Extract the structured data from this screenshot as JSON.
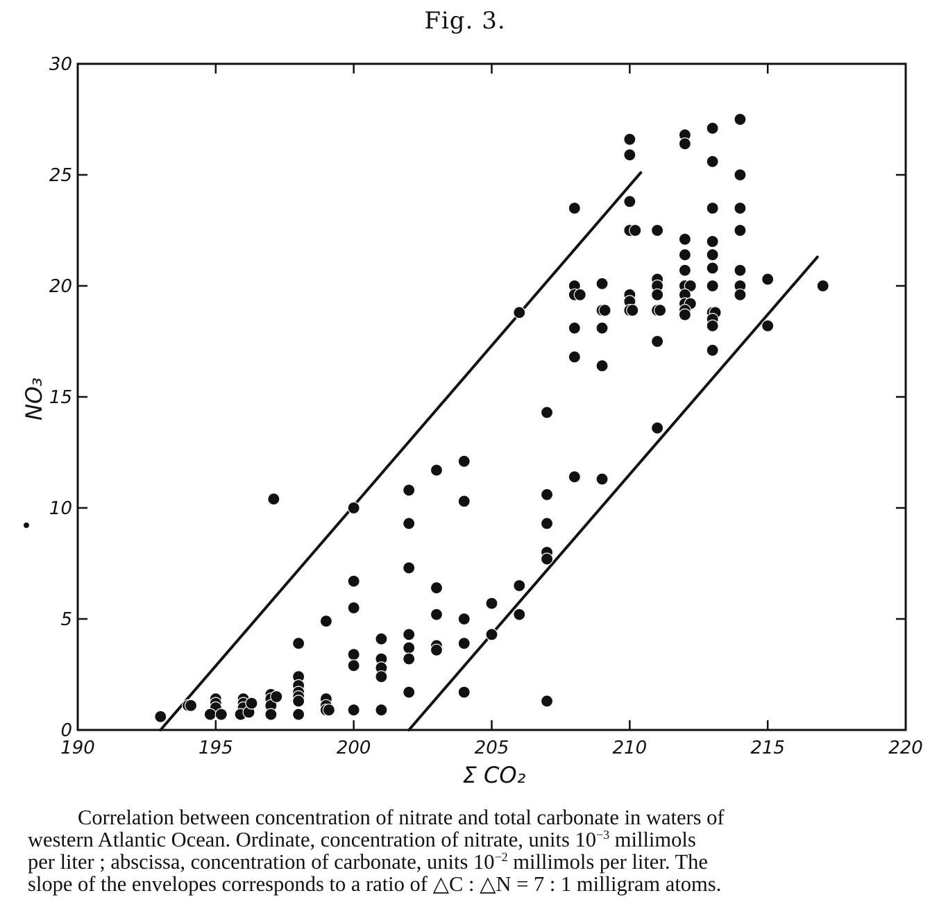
{
  "figure_title": "Fig. 3.",
  "caption": {
    "line1": "Correlation between concentration of nitrate and total carbonate in waters of",
    "line2_a": "western Atlantic Ocean.  Ordinate, concentration of nitrate, units 10",
    "line2_exp": "−3",
    "line2_b": " millimols",
    "line3_a": "per liter ;  abscissa, concentration of carbonate, units 10",
    "line3_exp": "−2",
    "line3_b": " millimols per liter.  The",
    "line4": "slope of the envelopes corresponds to a ratio of △C : △N = 7 : 1 milligram atoms."
  },
  "chart_data": {
    "type": "scatter",
    "title": "Fig. 3.",
    "xlabel": "Σ CO₂",
    "ylabel": "NO₃",
    "xlim": [
      190,
      220
    ],
    "ylim": [
      0,
      30
    ],
    "x_ticks": [
      190,
      195,
      200,
      205,
      210,
      215,
      220
    ],
    "y_ticks": [
      0,
      5,
      10,
      15,
      20,
      25,
      30
    ],
    "x_tick_labels": [
      "190",
      "195",
      "200",
      "205",
      "210",
      "215",
      "220"
    ],
    "y_tick_labels": [
      "0",
      "5",
      "10",
      "15",
      "20",
      "25",
      "30"
    ],
    "grid": false,
    "envelope_lines": [
      {
        "x": [
          193.0,
          210.4
        ],
        "y": [
          0.0,
          25.1
        ]
      },
      {
        "x": [
          202.0,
          216.8
        ],
        "y": [
          0.0,
          21.3
        ]
      }
    ],
    "points": [
      [
        193,
        0.6
      ],
      [
        194,
        1.1
      ],
      [
        194.1,
        1.1
      ],
      [
        195,
        1.4
      ],
      [
        195,
        1.2
      ],
      [
        195,
        1.0
      ],
      [
        194.8,
        0.7
      ],
      [
        195.2,
        0.7
      ],
      [
        196,
        1.4
      ],
      [
        196,
        1.2
      ],
      [
        196,
        1.0
      ],
      [
        195.9,
        0.7
      ],
      [
        196.2,
        0.8
      ],
      [
        196.3,
        1.2
      ],
      [
        197,
        1.6
      ],
      [
        197,
        1.4
      ],
      [
        197,
        1.1
      ],
      [
        197,
        0.7
      ],
      [
        197.2,
        1.5
      ],
      [
        197.1,
        10.4
      ],
      [
        198,
        3.9
      ],
      [
        198,
        2.4
      ],
      [
        198,
        2.0
      ],
      [
        198,
        1.7
      ],
      [
        198,
        1.5
      ],
      [
        198,
        1.3
      ],
      [
        198,
        0.7
      ],
      [
        199,
        4.9
      ],
      [
        199,
        1.4
      ],
      [
        199,
        1.1
      ],
      [
        199,
        0.9
      ],
      [
        199.1,
        0.9
      ],
      [
        200,
        10.0
      ],
      [
        200,
        6.7
      ],
      [
        200,
        5.5
      ],
      [
        200,
        3.4
      ],
      [
        200,
        2.9
      ],
      [
        200,
        0.9
      ],
      [
        201,
        4.1
      ],
      [
        201,
        3.2
      ],
      [
        201,
        2.8
      ],
      [
        201,
        2.4
      ],
      [
        201,
        0.9
      ],
      [
        202,
        10.8
      ],
      [
        202,
        9.3
      ],
      [
        202,
        7.3
      ],
      [
        202,
        4.3
      ],
      [
        202,
        3.7
      ],
      [
        202,
        3.2
      ],
      [
        202,
        1.7
      ],
      [
        203,
        11.7
      ],
      [
        203,
        6.4
      ],
      [
        203,
        5.2
      ],
      [
        203,
        3.8
      ],
      [
        203,
        3.6
      ],
      [
        204,
        12.1
      ],
      [
        204,
        10.3
      ],
      [
        204,
        5.0
      ],
      [
        204,
        3.9
      ],
      [
        204,
        1.7
      ],
      [
        205,
        5.7
      ],
      [
        205,
        4.3
      ],
      [
        206,
        18.8
      ],
      [
        206,
        6.5
      ],
      [
        206,
        5.2
      ],
      [
        207,
        14.3
      ],
      [
        207,
        10.6
      ],
      [
        207,
        9.3
      ],
      [
        207,
        8.0
      ],
      [
        207,
        7.7
      ],
      [
        207,
        1.3
      ],
      [
        208,
        23.5
      ],
      [
        208,
        20.0
      ],
      [
        208,
        19.6
      ],
      [
        208.2,
        19.6
      ],
      [
        208,
        18.1
      ],
      [
        208,
        16.8
      ],
      [
        208,
        11.4
      ],
      [
        209,
        20.1
      ],
      [
        209,
        18.9
      ],
      [
        209.1,
        18.9
      ],
      [
        209,
        18.1
      ],
      [
        209,
        16.4
      ],
      [
        209,
        11.3
      ],
      [
        210,
        26.6
      ],
      [
        210,
        25.9
      ],
      [
        210,
        23.8
      ],
      [
        210,
        22.5
      ],
      [
        210.2,
        22.5
      ],
      [
        210,
        19.6
      ],
      [
        210,
        19.3
      ],
      [
        210,
        18.9
      ],
      [
        210.1,
        18.9
      ],
      [
        211,
        22.5
      ],
      [
        211,
        20.3
      ],
      [
        211,
        20.0
      ],
      [
        211,
        19.6
      ],
      [
        211,
        18.9
      ],
      [
        211.1,
        18.9
      ],
      [
        211,
        17.5
      ],
      [
        211,
        13.6
      ],
      [
        212,
        26.8
      ],
      [
        212,
        26.4
      ],
      [
        212,
        22.1
      ],
      [
        212,
        21.4
      ],
      [
        212,
        20.7
      ],
      [
        212,
        20.0
      ],
      [
        212.2,
        20.0
      ],
      [
        212,
        19.6
      ],
      [
        212,
        19.2
      ],
      [
        212.2,
        19.2
      ],
      [
        212,
        18.9
      ],
      [
        212,
        18.7
      ],
      [
        213,
        27.1
      ],
      [
        213,
        25.6
      ],
      [
        213,
        23.5
      ],
      [
        213,
        22.0
      ],
      [
        213,
        21.4
      ],
      [
        213,
        20.8
      ],
      [
        213,
        20.0
      ],
      [
        213,
        18.8
      ],
      [
        213.1,
        18.8
      ],
      [
        213,
        18.5
      ],
      [
        213,
        18.2
      ],
      [
        213,
        17.1
      ],
      [
        214,
        27.5
      ],
      [
        214,
        25.0
      ],
      [
        214,
        23.5
      ],
      [
        214,
        22.5
      ],
      [
        214,
        20.7
      ],
      [
        214,
        20.0
      ],
      [
        214,
        19.6
      ],
      [
        215,
        20.3
      ],
      [
        215,
        18.2
      ],
      [
        217,
        20.0
      ]
    ]
  }
}
